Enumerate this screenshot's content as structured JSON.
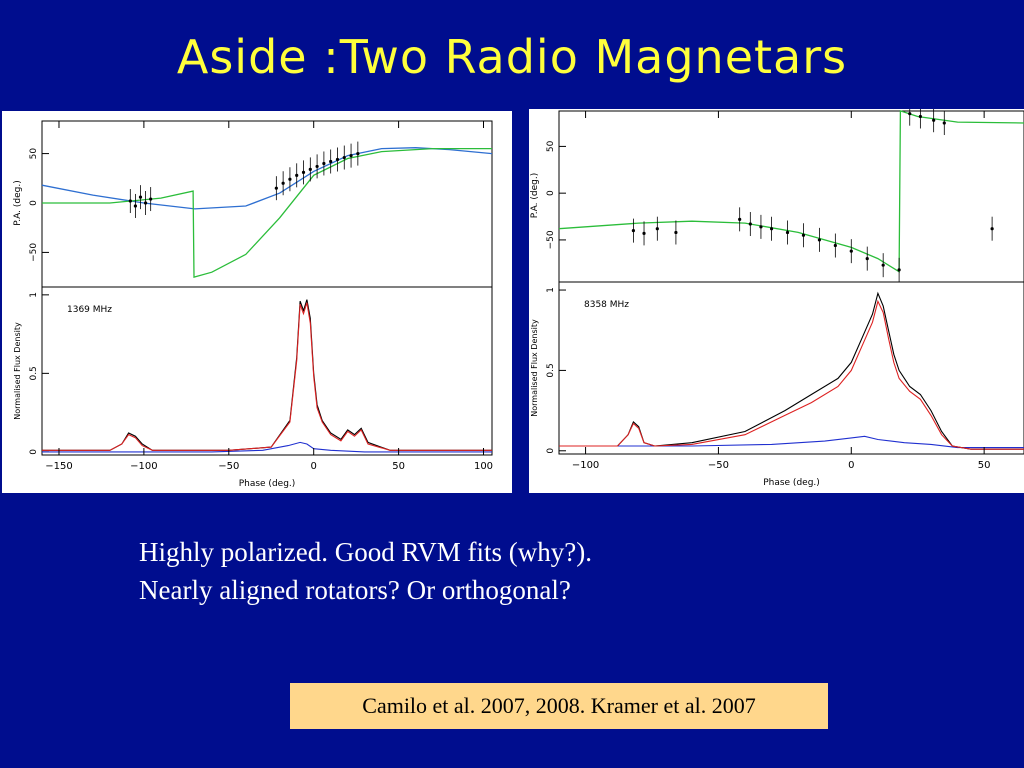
{
  "slide": {
    "title": "Aside :Two Radio Magnetars",
    "bullets": [
      "Highly polarized. Good RVM fits (why?).",
      "Nearly aligned rotators? Or orthogonal?"
    ],
    "citation": "Camilo et al. 2007, 2008. Kramer et al. 2007",
    "colors": {
      "background": "#000d8e",
      "title": "#ffff3c",
      "citation_bg": "#ffd78c"
    }
  },
  "chart_data": [
    {
      "type": "line",
      "id": "left",
      "frequency_label": "1369 MHz",
      "xlabel": "Phase (deg.)",
      "xlim": [
        -160,
        105
      ],
      "x_ticks": [
        -150,
        -100,
        -50,
        0,
        50,
        100
      ],
      "pa_panel": {
        "ylabel": "P.A. (deg.)",
        "ylim": [
          -85,
          85
        ],
        "y_ticks": [
          -50,
          0,
          50
        ],
        "pa_points": [
          {
            "x": -108,
            "y": 2
          },
          {
            "x": -105,
            "y": -3
          },
          {
            "x": -102,
            "y": 6
          },
          {
            "x": -99,
            "y": 0
          },
          {
            "x": -96,
            "y": 4
          },
          {
            "x": -22,
            "y": 15
          },
          {
            "x": -18,
            "y": 20
          },
          {
            "x": -14,
            "y": 24
          },
          {
            "x": -10,
            "y": 28
          },
          {
            "x": -6,
            "y": 31
          },
          {
            "x": -2,
            "y": 34
          },
          {
            "x": 2,
            "y": 37
          },
          {
            "x": 6,
            "y": 40
          },
          {
            "x": 10,
            "y": 42
          },
          {
            "x": 14,
            "y": 44
          },
          {
            "x": 18,
            "y": 46
          },
          {
            "x": 22,
            "y": 48
          },
          {
            "x": 26,
            "y": 50
          }
        ],
        "rvm_fits": [
          {
            "color": "#2e6fd1",
            "x": [
              -160,
              -130,
              -100,
              -70,
              -40,
              -20,
              0,
              20,
              40,
              60,
              80,
              105
            ],
            "y": [
              18,
              8,
              0,
              -6,
              -3,
              10,
              32,
              48,
              55,
              56,
              54,
              50
            ]
          },
          {
            "color": "#2bbd3a",
            "x": [
              -160,
              -120,
              -90,
              -71,
              -70.5,
              -60,
              -40,
              -20,
              0,
              20,
              40,
              70,
              105
            ],
            "y": [
              0,
              0,
              5,
              12,
              -75,
              -70,
              -52,
              -15,
              28,
              45,
              52,
              55,
              55
            ]
          }
        ]
      },
      "profile_panel": {
        "ylabel": "Normalised Flux Density",
        "ylim": [
          -0.02,
          1.05
        ],
        "y_ticks": [
          0,
          0.5,
          1
        ],
        "total_intensity": {
          "color": "#000000",
          "x": [
            -160,
            -120,
            -113,
            -109,
            -105,
            -101,
            -95,
            -80,
            -50,
            -25,
            -14,
            -10,
            -8,
            -6,
            -4,
            -2,
            0,
            2,
            5,
            10,
            16,
            20,
            24,
            28,
            32,
            45,
            105
          ],
          "y": [
            0.01,
            0.01,
            0.05,
            0.12,
            0.1,
            0.05,
            0.01,
            0.01,
            0.01,
            0.03,
            0.2,
            0.6,
            0.96,
            0.9,
            0.97,
            0.85,
            0.5,
            0.3,
            0.2,
            0.12,
            0.08,
            0.14,
            0.11,
            0.15,
            0.06,
            0.01,
            0.01
          ]
        },
        "linear_polarization": {
          "color": "#dd2222",
          "x": [
            -160,
            -120,
            -113,
            -109,
            -105,
            -101,
            -95,
            -80,
            -50,
            -25,
            -14,
            -10,
            -8,
            -6,
            -4,
            -2,
            0,
            2,
            5,
            10,
            16,
            20,
            24,
            28,
            32,
            45,
            105
          ],
          "y": [
            0.01,
            0.01,
            0.05,
            0.11,
            0.09,
            0.04,
            0.01,
            0.01,
            0.01,
            0.03,
            0.19,
            0.58,
            0.94,
            0.88,
            0.95,
            0.82,
            0.48,
            0.28,
            0.19,
            0.11,
            0.07,
            0.13,
            0.1,
            0.14,
            0.05,
            0.01,
            0.01
          ]
        },
        "circular_polarization": {
          "color": "#2030d0",
          "x": [
            -160,
            -60,
            -30,
            -15,
            -8,
            -4,
            0,
            10,
            30,
            105
          ],
          "y": [
            0.0,
            0.0,
            0.01,
            0.04,
            0.06,
            0.05,
            0.02,
            0.01,
            0.0,
            0.0
          ]
        }
      }
    },
    {
      "type": "line",
      "id": "right",
      "frequency_label": "8358 MHz",
      "xlabel": "Phase (deg.)",
      "xlim": [
        -110,
        65
      ],
      "x_ticks": [
        -100,
        -50,
        0,
        50
      ],
      "pa_panel": {
        "ylabel": "P.A. (deg.)",
        "ylim": [
          -95,
          90
        ],
        "y_ticks": [
          -50,
          0,
          50
        ],
        "pa_points": [
          {
            "x": -82,
            "y": -40
          },
          {
            "x": -78,
            "y": -43
          },
          {
            "x": -73,
            "y": -38
          },
          {
            "x": -66,
            "y": -42
          },
          {
            "x": -42,
            "y": -28
          },
          {
            "x": -38,
            "y": -33
          },
          {
            "x": -34,
            "y": -36
          },
          {
            "x": -30,
            "y": -38
          },
          {
            "x": -24,
            "y": -42
          },
          {
            "x": -18,
            "y": -45
          },
          {
            "x": -12,
            "y": -50
          },
          {
            "x": -6,
            "y": -56
          },
          {
            "x": 0,
            "y": -62
          },
          {
            "x": 6,
            "y": -70
          },
          {
            "x": 12,
            "y": -77
          },
          {
            "x": 18,
            "y": -82
          },
          {
            "x": 22,
            "y": 85
          },
          {
            "x": 26,
            "y": 82
          },
          {
            "x": 31,
            "y": 78
          },
          {
            "x": 35,
            "y": 75
          },
          {
            "x": 53,
            "y": -38
          }
        ],
        "rvm_fits": [
          {
            "color": "#2bbd3a",
            "x": [
              -110,
              -80,
              -60,
              -40,
              -20,
              0,
              10,
              18,
              18.5,
              25,
              40,
              65
            ],
            "y": [
              -38,
              -32,
              -30,
              -32,
              -42,
              -58,
              -70,
              -84,
              88,
              82,
              76,
              75
            ]
          }
        ]
      },
      "profile_panel": {
        "ylabel": "Normalised Flux Density",
        "ylim": [
          -0.02,
          1.05
        ],
        "y_ticks": [
          0,
          0.5,
          1
        ],
        "total_intensity": {
          "color": "#000000",
          "x": [
            -110,
            -88,
            -84,
            -82,
            -80,
            -78,
            -74,
            -60,
            -40,
            -25,
            -15,
            -5,
            0,
            4,
            8,
            10,
            12,
            14,
            16,
            18,
            22,
            26,
            30,
            34,
            38,
            45,
            65
          ],
          "y": [
            0.03,
            0.03,
            0.1,
            0.18,
            0.15,
            0.05,
            0.03,
            0.05,
            0.12,
            0.25,
            0.35,
            0.45,
            0.55,
            0.7,
            0.85,
            0.98,
            0.9,
            0.75,
            0.6,
            0.5,
            0.4,
            0.35,
            0.25,
            0.12,
            0.03,
            0.01,
            0.01
          ]
        },
        "linear_polarization": {
          "color": "#dd2222",
          "x": [
            -110,
            -88,
            -84,
            -82,
            -80,
            -78,
            -74,
            -60,
            -40,
            -25,
            -15,
            -5,
            0,
            4,
            8,
            10,
            12,
            14,
            16,
            18,
            22,
            26,
            30,
            34,
            38,
            45,
            65
          ],
          "y": [
            0.03,
            0.03,
            0.1,
            0.17,
            0.14,
            0.05,
            0.03,
            0.04,
            0.1,
            0.22,
            0.3,
            0.4,
            0.5,
            0.65,
            0.8,
            0.93,
            0.86,
            0.7,
            0.55,
            0.45,
            0.37,
            0.32,
            0.22,
            0.1,
            0.03,
            0.01,
            0.01
          ]
        },
        "circular_polarization": {
          "color": "#2030d0",
          "x": [
            -110,
            -60,
            -30,
            -10,
            0,
            5,
            10,
            20,
            30,
            40,
            65
          ],
          "y": [
            0.03,
            0.03,
            0.04,
            0.06,
            0.08,
            0.09,
            0.07,
            0.05,
            0.04,
            0.02,
            0.02
          ]
        }
      }
    }
  ]
}
